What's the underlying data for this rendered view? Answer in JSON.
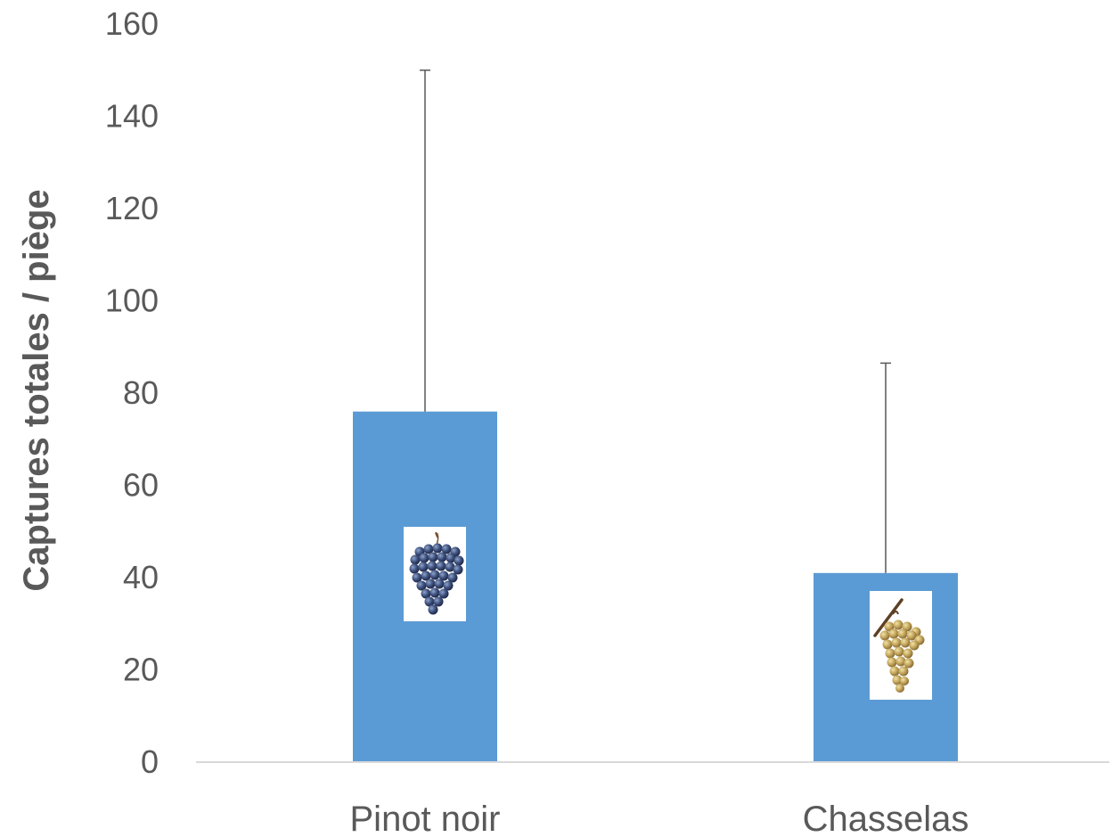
{
  "chart_data": {
    "type": "bar",
    "categories": [
      "Pinot noir",
      "Chasselas"
    ],
    "values": [
      76,
      41
    ],
    "error_upper": [
      150,
      86.5
    ],
    "ylabel": "Captures totales / piège",
    "xlabel": "",
    "ylim": [
      0,
      160
    ],
    "yticks": [
      "0",
      "20",
      "40",
      "60",
      "80",
      "100",
      "120",
      "140",
      "160"
    ],
    "grid": false,
    "legend": "none",
    "colors": {
      "bar": "#5B9BD5",
      "error_bar": "#595959",
      "axis": "#D9D9D9",
      "text": "#595959"
    },
    "icons": [
      "black-grape-cluster-icon",
      "white-grape-cluster-icon"
    ]
  }
}
